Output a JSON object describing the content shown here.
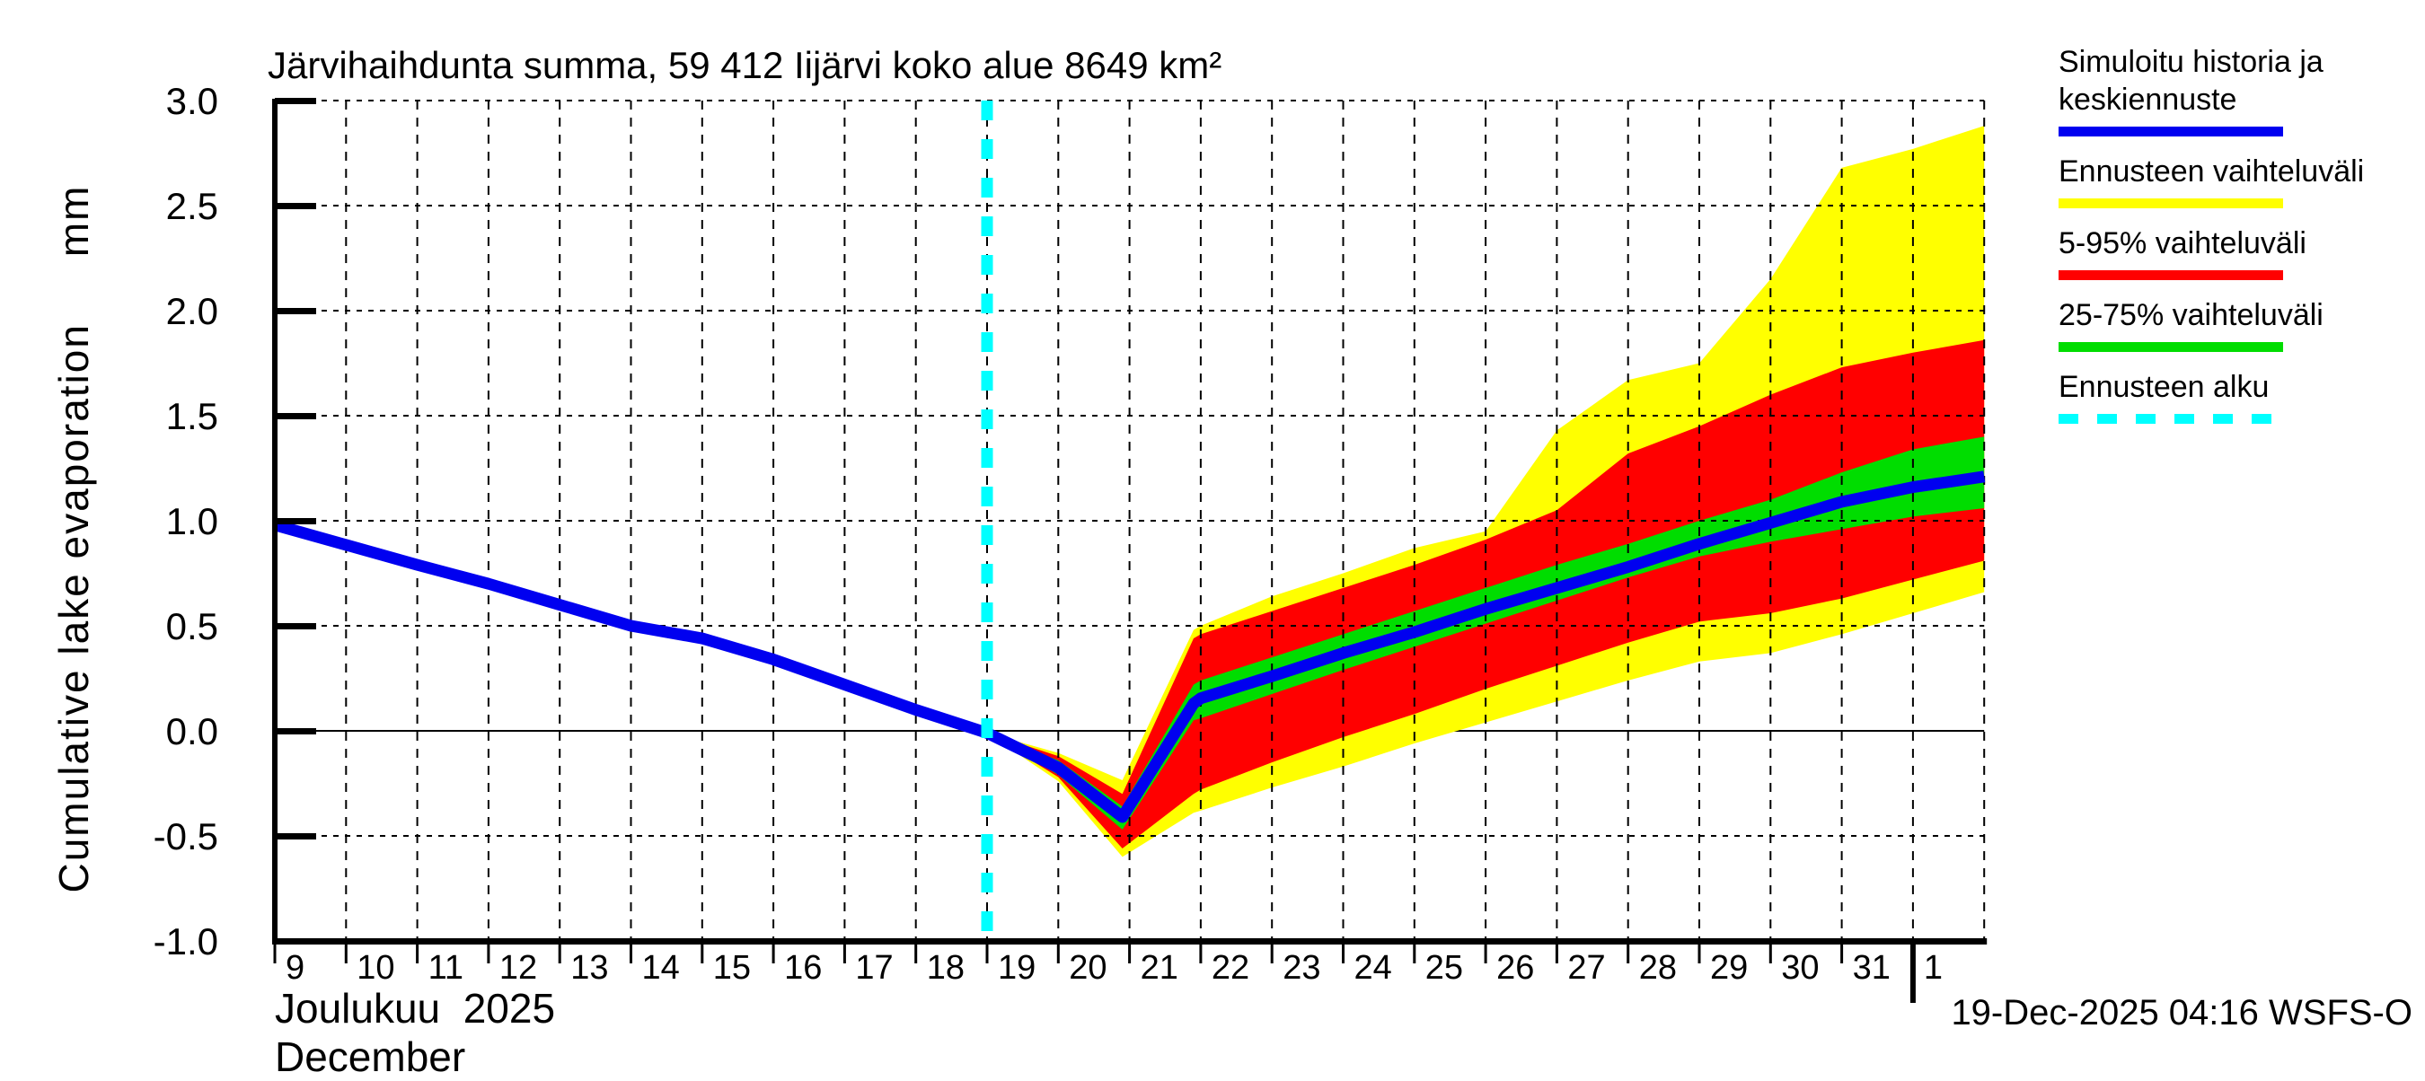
{
  "title": "Järvihaihdunta summa, 59 412 Iijärvi koko alue 8649 km²",
  "y_axis": {
    "label": "Cumulative lake evaporation     mm",
    "tick_labels": [
      "3.0",
      "2.5",
      "2.0",
      "1.5",
      "1.0",
      "0.5",
      "0.0",
      "-0.5",
      "-1.0"
    ],
    "tick_values": [
      3,
      2.5,
      2,
      1.5,
      1,
      0.5,
      0,
      -0.5,
      -1
    ]
  },
  "x_axis": {
    "month_fi": "Joulukuu  2025",
    "month_en": "December",
    "day_labels": [
      "9",
      "10",
      "11",
      "12",
      "13",
      "14",
      "15",
      "16",
      "17",
      "18",
      "19",
      "20",
      "21",
      "22",
      "23",
      "24",
      "25",
      "26",
      "27",
      "28",
      "29",
      "30",
      "31",
      "1"
    ]
  },
  "footer": "19-Dec-2025 04:16 WSFS-O",
  "colors": {
    "median_blue": "#0000f0",
    "range_yellow": "#ffff00",
    "p5_95_red": "#ff0000",
    "p25_75_green": "#00dd00",
    "forecast_start_cyan": "#00ffff",
    "grid_black": "#000000"
  },
  "legend": {
    "items": [
      {
        "label": "Simuloitu historia ja keskiennuste",
        "color": "#0000f0",
        "dashed": false
      },
      {
        "label": "Ennusteen vaihteluväli",
        "color": "#ffff00",
        "dashed": false
      },
      {
        "label": "5-95% vaihteluväli",
        "color": "#ff0000",
        "dashed": false
      },
      {
        "label": "25-75% vaihteluväli",
        "color": "#00dd00",
        "dashed": false
      },
      {
        "label": "Ennusteen alku",
        "color": "#00ffff",
        "dashed": true
      }
    ]
  },
  "chart_data": {
    "type": "line",
    "title": "Järvihaihdunta summa, 59 412 Iijärvi koko alue 8649 km²",
    "xlabel": "Joulukuu 2025 / December (day of month, 9 Dec – 1 Jan)",
    "ylabel": "Cumulative lake evaporation (mm)",
    "xlim_days": [
      9,
      33
    ],
    "ylim": [
      -1.0,
      3.0
    ],
    "grid": true,
    "legend_position": "outside-right",
    "forecast_start_day": 19,
    "history": {
      "name": "Simuloitu historia (median, blue)",
      "x": [
        9,
        10,
        11,
        12,
        13,
        14,
        15,
        16,
        17,
        18,
        19
      ],
      "y": [
        0.98,
        0.885,
        0.79,
        0.7,
        0.6,
        0.5,
        0.44,
        0.34,
        0.22,
        0.1,
        -0.01
      ]
    },
    "forecast": {
      "name": "Ennuste (keskiennuste ja vaihteluvälit)",
      "x": [
        19,
        20,
        20.9,
        21.9,
        22,
        23,
        24,
        25,
        26,
        27,
        28,
        29,
        30,
        31,
        32,
        33
      ],
      "median": [
        -0.01,
        -0.175,
        -0.41,
        0.13,
        0.155,
        0.26,
        0.37,
        0.47,
        0.58,
        0.68,
        0.78,
        0.89,
        0.99,
        1.09,
        1.16,
        1.21
      ],
      "p25": [
        -0.01,
        -0.21,
        -0.47,
        0.05,
        0.06,
        0.175,
        0.29,
        0.4,
        0.51,
        0.62,
        0.73,
        0.83,
        0.9,
        0.96,
        1.02,
        1.06
      ],
      "p75": [
        -0.01,
        -0.14,
        -0.36,
        0.22,
        0.24,
        0.35,
        0.46,
        0.57,
        0.68,
        0.79,
        0.89,
        1.0,
        1.1,
        1.23,
        1.34,
        1.4
      ],
      "p5": [
        -0.01,
        -0.22,
        -0.56,
        -0.3,
        -0.28,
        -0.15,
        -0.03,
        0.08,
        0.2,
        0.31,
        0.42,
        0.52,
        0.56,
        0.63,
        0.72,
        0.81
      ],
      "p95": [
        -0.01,
        -0.12,
        -0.3,
        0.44,
        0.46,
        0.57,
        0.68,
        0.79,
        0.91,
        1.05,
        1.32,
        1.45,
        1.6,
        1.73,
        1.8,
        1.86
      ],
      "min": [
        -0.01,
        -0.24,
        -0.6,
        -0.39,
        -0.38,
        -0.27,
        -0.17,
        -0.06,
        0.04,
        0.14,
        0.24,
        0.33,
        0.37,
        0.46,
        0.56,
        0.66
      ],
      "max": [
        -0.01,
        -0.105,
        -0.235,
        0.48,
        0.5,
        0.64,
        0.75,
        0.87,
        0.95,
        1.43,
        1.67,
        1.75,
        2.15,
        2.68,
        2.77,
        2.88
      ]
    },
    "x_note": "x units are December day numbers; 32 = 1 January, 33 = end of 1 January"
  }
}
